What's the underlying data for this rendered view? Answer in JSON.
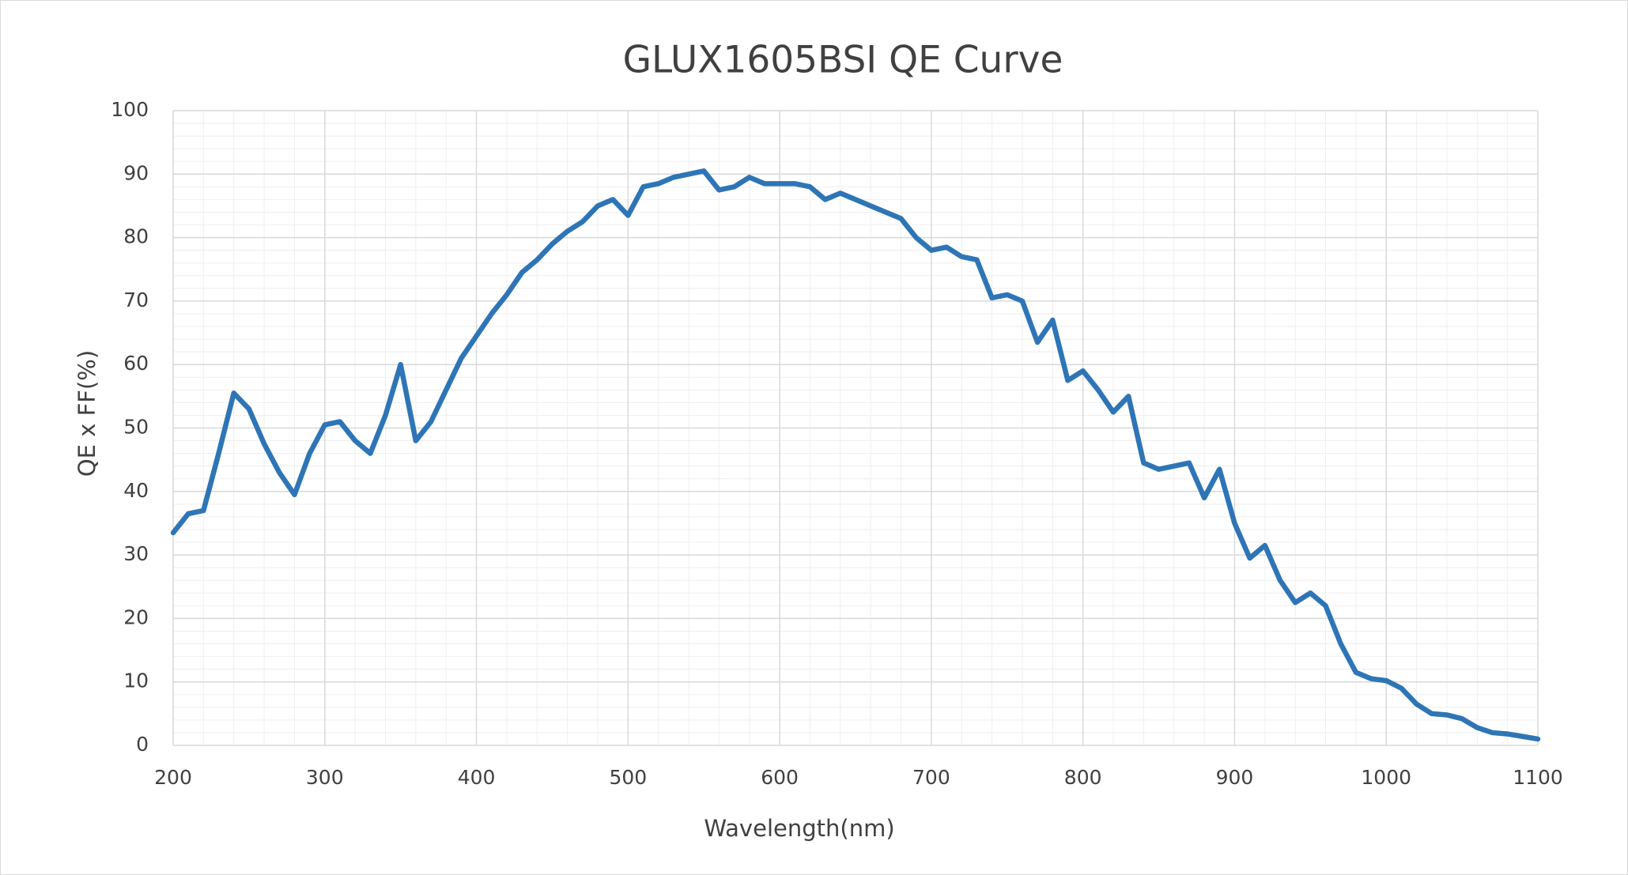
{
  "chart_data": {
    "type": "line",
    "title": "GLUX1605BSI QE  Curve",
    "x_label": "Wavelength(nm)",
    "y_label": "QE x FF(%)",
    "x": [
      200,
      210,
      220,
      230,
      240,
      250,
      260,
      270,
      280,
      290,
      300,
      310,
      320,
      330,
      340,
      350,
      360,
      370,
      380,
      390,
      400,
      410,
      420,
      430,
      440,
      450,
      460,
      470,
      480,
      490,
      500,
      510,
      520,
      530,
      540,
      550,
      560,
      570,
      580,
      590,
      600,
      610,
      620,
      630,
      640,
      650,
      660,
      670,
      680,
      690,
      700,
      710,
      720,
      730,
      740,
      750,
      760,
      770,
      780,
      790,
      800,
      810,
      820,
      830,
      840,
      850,
      860,
      870,
      880,
      890,
      900,
      910,
      920,
      930,
      940,
      950,
      960,
      970,
      980,
      990,
      1000,
      1010,
      1020,
      1030,
      1040,
      1050,
      1060,
      1070,
      1080,
      1090,
      1100
    ],
    "series": [
      {
        "name": "QE",
        "color": "#2e75b6",
        "values": [
          33.5,
          36.5,
          37,
          46,
          55.5,
          53,
          47.5,
          43,
          39.5,
          46,
          50.5,
          51,
          48,
          46,
          52,
          60,
          48,
          51,
          56,
          61,
          64.5,
          68,
          71,
          74.5,
          76.5,
          79,
          81,
          82.5,
          85,
          86,
          83.5,
          88,
          88.5,
          89.5,
          90,
          90.5,
          87.5,
          88,
          89.5,
          88.5,
          88.5,
          88.5,
          88,
          86,
          87,
          86,
          85,
          84,
          83,
          80,
          78,
          78.5,
          77,
          76.5,
          70.5,
          71,
          70,
          63.5,
          67,
          57.5,
          59,
          56,
          52.5,
          55,
          44.5,
          43.5,
          44,
          44.5,
          39,
          43.5,
          35,
          29.5,
          31.5,
          26,
          22.5,
          24,
          22,
          16,
          11.5,
          10.5,
          10.2,
          9,
          6.5,
          5,
          4.8,
          4.2,
          2.8,
          2,
          1.8,
          1.4,
          1
        ]
      }
    ],
    "xlim": [
      200,
      1100
    ],
    "xticks": [
      200,
      300,
      400,
      500,
      600,
      700,
      800,
      900,
      1000,
      1100
    ],
    "ylim": [
      0,
      100
    ],
    "yticks": [
      0,
      10,
      20,
      30,
      40,
      50,
      60,
      70,
      80,
      90,
      100
    ],
    "grid": true,
    "minor_grid": true
  }
}
